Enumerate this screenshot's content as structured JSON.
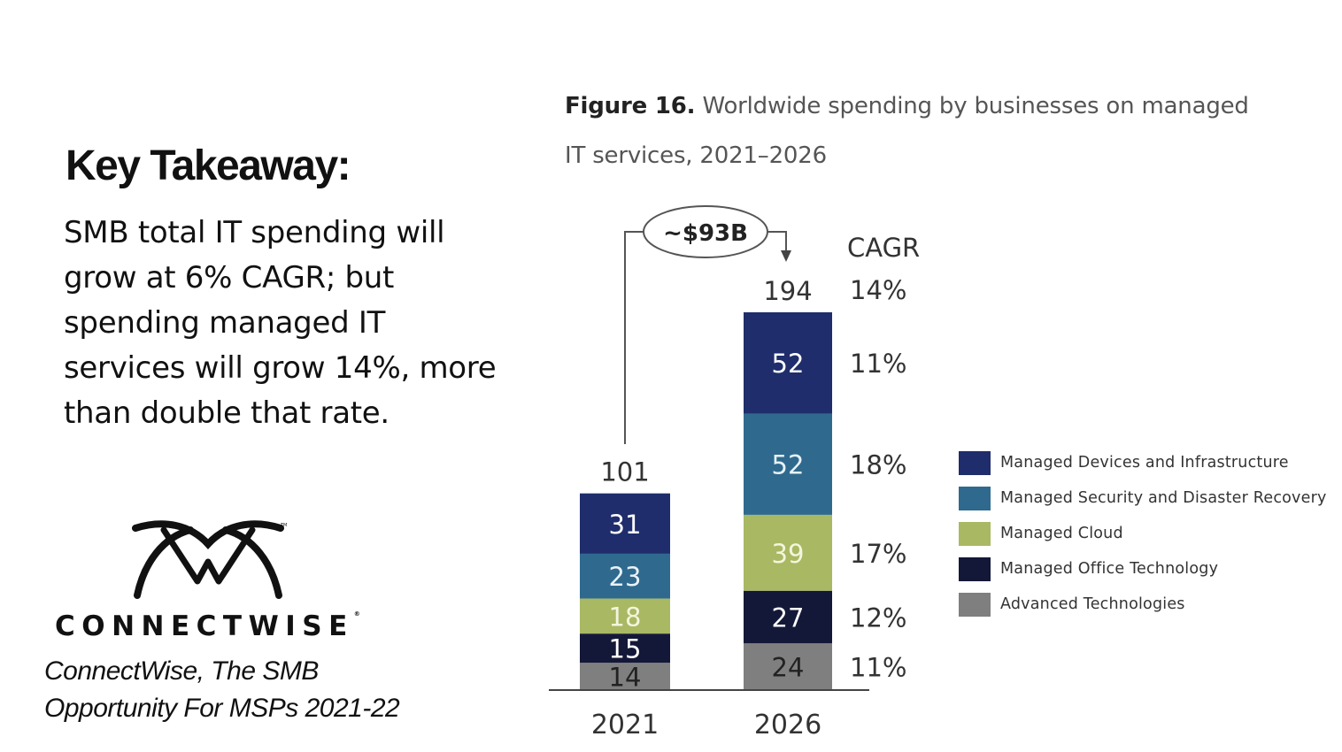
{
  "takeaway": {
    "title": "Key Takeaway:",
    "lines": [
      "SMB total IT spending will",
      "grow at 6% CAGR; but",
      "spending managed IT",
      "services will grow 14%, more",
      "than double that rate."
    ]
  },
  "brand": {
    "logo_icon": "connectwise-logo-icon",
    "name": "CONNECTWISE",
    "registered_mark": "®",
    "citation_lines": [
      "ConnectWise, The SMB",
      "Opportunity For MSPs 2021-22"
    ]
  },
  "figure": {
    "number_label": "Figure 16.",
    "title_line1": "Worldwide spending by businesses on managed",
    "title_line2": "IT services, 2021–2026"
  },
  "chart_data": {
    "type": "bar",
    "stacked": true,
    "title": "Figure 16. Worldwide spending by businesses on managed IT services, 2021–2026",
    "xlabel": "",
    "ylabel": "",
    "categories": [
      "2021",
      "2026"
    ],
    "totals": [
      101,
      194
    ],
    "series": [
      {
        "name": "Advanced Technologies",
        "color": "#7f7f7f",
        "label_color": "#222222",
        "values": [
          14,
          24
        ],
        "cagr": "11%"
      },
      {
        "name": "Managed Office Technology",
        "color": "#141838",
        "label_color": "#ffffff",
        "values": [
          15,
          27
        ],
        "cagr": "12%"
      },
      {
        "name": "Managed Cloud",
        "color": "#a9b863",
        "label_color": "#f3f5dc",
        "values": [
          18,
          39
        ],
        "cagr": "17%"
      },
      {
        "name": "Managed Security and Disaster Recovery",
        "color": "#2f6a8e",
        "label_color": "#e8f2f8",
        "values": [
          23,
          52
        ],
        "cagr": "18%"
      },
      {
        "name": "Managed Devices and Infrastructure",
        "color": "#1f2d6c",
        "label_color": "#ffffff",
        "values": [
          31,
          52
        ],
        "cagr": "11%"
      }
    ],
    "cagr_header": "CAGR",
    "total_cagr": "14%",
    "growth_annotation": "~$93B",
    "ylim": [
      0,
      194
    ],
    "grid": false,
    "legend_position": "right",
    "legend_order": [
      "Managed Devices and Infrastructure",
      "Managed Security and Disaster Recovery",
      "Managed Cloud",
      "Managed Office Technology",
      "Advanced Technologies"
    ]
  }
}
